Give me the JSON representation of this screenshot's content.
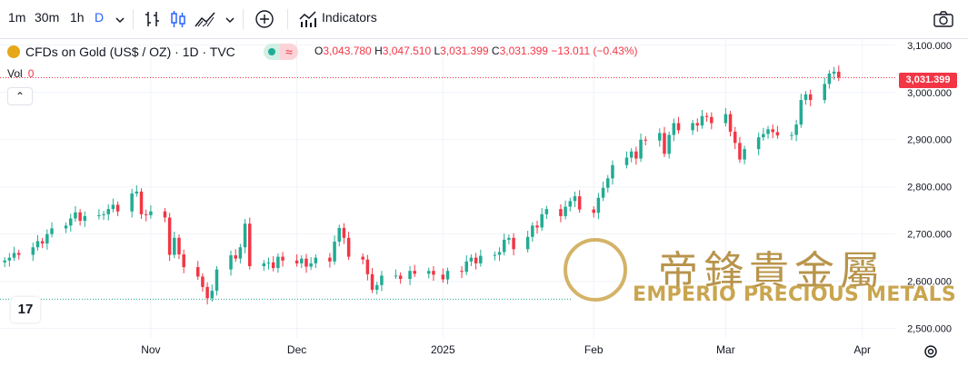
{
  "toolbar": {
    "intervals": [
      "1m",
      "30m",
      "1h",
      "D"
    ],
    "active_interval": "D",
    "indicators_label": "Indicators"
  },
  "legend": {
    "symbol": "CFDs on Gold (US$ / OZ) · 1D · TVC",
    "open_label": "O",
    "open": "3,043.780",
    "high_label": "H",
    "high": "3,047.510",
    "low_label": "L",
    "low": "3,031.399",
    "close_label": "C",
    "close": "3,031.399",
    "change": "−13.011 (−0.43%)",
    "vol_label": "Vol",
    "vol_value": "0",
    "collapse_glyph": "⌃"
  },
  "last_price": "3,031.399",
  "watermark": {
    "chinese": "帝鋒貴金屬",
    "english": "EMPERIO PRECIOUS METALS"
  },
  "tv_logo_text": "17",
  "colors": {
    "up": "#22ab94",
    "down": "#f23645",
    "accent": "#2962ff",
    "gold": "#c9a54f"
  },
  "chart_data": {
    "type": "candlestick",
    "title": "CFDs on Gold (US$ / OZ)",
    "x_ticks": [
      {
        "label": "Nov",
        "date": "2024-11-01"
      },
      {
        "label": "Dec",
        "date": "2024-12-02"
      },
      {
        "label": "2025",
        "date": "2025-01-02"
      },
      {
        "label": "Feb",
        "date": "2025-02-03"
      },
      {
        "label": "Mar",
        "date": "2025-03-03"
      },
      {
        "label": "Apr",
        "date": "2025-04-01"
      }
    ],
    "y_ticks": [
      2500,
      2600,
      2700,
      2800,
      2900,
      3000,
      3100
    ],
    "y_tick_labels": [
      "2,500.000",
      "2,600.000",
      "2,700.000",
      "2,800.000",
      "2,900.000",
      "3,000.000",
      "3,100.000"
    ],
    "ylim": [
      2480,
      3115
    ],
    "xlim": [
      "2024-09-30",
      "2025-04-08"
    ],
    "last_price_value": 3031.399,
    "dotted_level_value": 2562,
    "closes": [
      2644,
      2650,
      2660,
      2656,
      2672,
      2685,
      2680,
      2700,
      2712,
      2718,
      2733,
      2746,
      2728,
      2738,
      2740,
      2742,
      2753,
      2762,
      2748,
      2786,
      2790,
      2742,
      2740,
      2748,
      2735,
      2656,
      2692,
      2657,
      2630,
      2610,
      2588,
      2564,
      2580,
      2625,
      2655,
      2648,
      2672,
      2722,
      2632,
      2638,
      2640,
      2628,
      2652,
      2644,
      2638,
      2648,
      2631,
      2638,
      2650,
      2642,
      2684,
      2713,
      2692,
      2652,
      2646,
      2615,
      2582,
      2592,
      2612,
      2612,
      2605,
      2622,
      2616,
      2622,
      2614,
      2604,
      2622,
      2620,
      2642,
      2650,
      2638,
      2654,
      2656,
      2662,
      2688,
      2692,
      2668,
      2694,
      2718,
      2714,
      2742,
      2753,
      2738,
      2758,
      2770,
      2780,
      2752,
      2745,
      2777,
      2798,
      2818,
      2846,
      2862,
      2875,
      2860,
      2900,
      2898,
      2914,
      2870,
      2910,
      2935,
      2920,
      2935,
      2930,
      2950,
      2948,
      2935,
      2954,
      2917,
      2893,
      2858,
      2880,
      2905,
      2912,
      2922,
      2916,
      2909,
      2910,
      2932,
      2984,
      2996,
      2984,
      3018,
      3040,
      3044,
      3031.399
    ]
  }
}
